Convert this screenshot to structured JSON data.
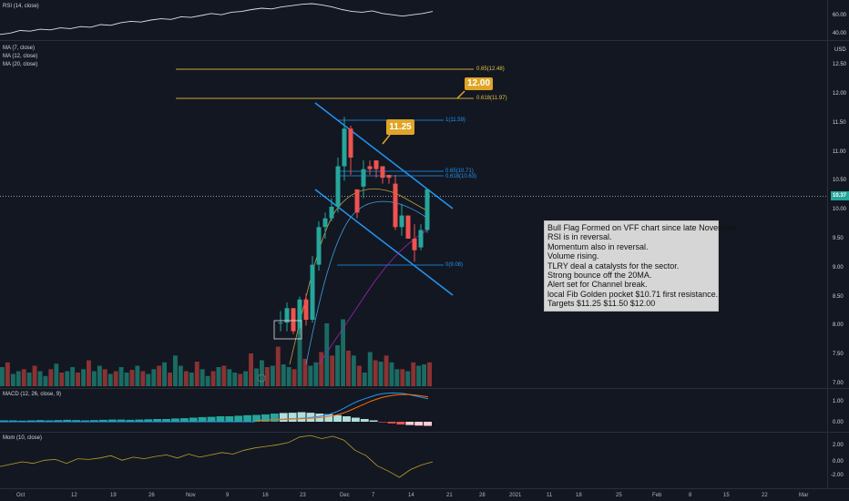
{
  "panes": {
    "rsi": {
      "label": "RSI (14, close)",
      "ticks": [
        "60.00",
        "40.00"
      ],
      "values": [
        28,
        30,
        34,
        33,
        36,
        35,
        38,
        37,
        40,
        39,
        43,
        42,
        46,
        48,
        47,
        50,
        52,
        51,
        55,
        54,
        57,
        60,
        58,
        62,
        63,
        66,
        68,
        67,
        70,
        72,
        74,
        75,
        73,
        70,
        66,
        63,
        62,
        64,
        60,
        58,
        56,
        58,
        60,
        63
      ]
    },
    "main": {
      "labels": [
        "MA (7, close)",
        "MA (12, close)",
        "MA (20, close)"
      ],
      "price_ticks": [
        "12.50",
        "12.00",
        "11.50",
        "11.00",
        "10.50",
        "10.00",
        "9.50",
        "9.00",
        "8.50",
        "8.00",
        "7.50",
        "7.00"
      ],
      "currency": "USD",
      "current_price": "10.37",
      "fib_labels": [
        "0.65(12.48)",
        "0.618(11.97)",
        "1(11.59)",
        "0.65(10.71)",
        "0.618(10.63)",
        "0(9.08)"
      ],
      "callouts": [
        "12.00",
        "11.25"
      ]
    },
    "macd": {
      "label": "MACD (12, 26, close, 9)",
      "ticks": [
        "1.00",
        "0.00"
      ]
    },
    "mom": {
      "label": "Mom (10, close)",
      "ticks": [
        "2.00",
        "0.00",
        "-2.00"
      ]
    }
  },
  "time_axis": [
    "Oct",
    "12",
    "19",
    "26",
    "Nov",
    "9",
    "16",
    "23",
    "Dec",
    "7",
    "14",
    "21",
    "28",
    "2021",
    "11",
    "18",
    "25",
    "Feb",
    "8",
    "15",
    "22",
    "Mar"
  ],
  "note_lines": [
    "Bull Flag Formed on VFF chart since late November.",
    "RSI is in reversal.",
    "Momentum also in reversal.",
    "Volume rising.",
    "TLRY deal a catalysts for the sector.",
    "Strong bounce off the 20MA.",
    "Alert set for Channel break.",
    "local Fib Golden pocket $10.71 first resistance.",
    "Targets $11.25 $11.50 $12.00"
  ],
  "chart_data": {
    "type": "candlestick",
    "symbol": "VFF",
    "ylim": [
      7.0,
      12.75
    ],
    "candles": [
      {
        "o": 8.05,
        "h": 8.25,
        "l": 7.9,
        "c": 8.05
      },
      {
        "o": 8.05,
        "h": 8.4,
        "l": 7.9,
        "c": 8.3
      },
      {
        "o": 8.3,
        "h": 8.3,
        "l": 7.85,
        "c": 7.9
      },
      {
        "o": 7.95,
        "h": 8.5,
        "l": 7.85,
        "c": 8.45
      },
      {
        "o": 8.45,
        "h": 8.55,
        "l": 8.0,
        "c": 8.1
      },
      {
        "o": 8.1,
        "h": 9.2,
        "l": 8.05,
        "c": 9.05
      },
      {
        "o": 9.05,
        "h": 9.8,
        "l": 8.95,
        "c": 9.7
      },
      {
        "o": 9.7,
        "h": 9.95,
        "l": 9.5,
        "c": 9.85
      },
      {
        "o": 9.85,
        "h": 10.2,
        "l": 9.8,
        "c": 10.05
      },
      {
        "o": 10.05,
        "h": 10.9,
        "l": 9.95,
        "c": 10.75
      },
      {
        "o": 10.75,
        "h": 11.6,
        "l": 10.5,
        "c": 11.4
      },
      {
        "o": 11.4,
        "h": 11.45,
        "l": 10.6,
        "c": 10.9
      },
      {
        "o": 10.35,
        "h": 10.35,
        "l": 9.85,
        "c": 9.95
      },
      {
        "o": 10.4,
        "h": 10.85,
        "l": 10.2,
        "c": 10.7
      },
      {
        "o": 10.75,
        "h": 10.85,
        "l": 10.6,
        "c": 10.7
      },
      {
        "o": 10.85,
        "h": 10.85,
        "l": 10.55,
        "c": 10.7
      },
      {
        "o": 10.75,
        "h": 10.75,
        "l": 10.45,
        "c": 10.55
      },
      {
        "o": 10.6,
        "h": 10.6,
        "l": 10.45,
        "c": 10.55
      },
      {
        "o": 10.45,
        "h": 10.6,
        "l": 9.65,
        "c": 9.7
      },
      {
        "o": 9.7,
        "h": 10.1,
        "l": 9.55,
        "c": 9.9
      },
      {
        "o": 9.9,
        "h": 9.9,
        "l": 9.5,
        "c": 9.5
      },
      {
        "o": 9.5,
        "h": 9.75,
        "l": 9.1,
        "c": 9.3
      },
      {
        "o": 9.35,
        "h": 9.75,
        "l": 9.3,
        "c": 9.65
      },
      {
        "o": 9.65,
        "h": 10.35,
        "l": 9.6,
        "c": 10.35
      }
    ],
    "volume": [
      0.28,
      0.35,
      0.18,
      0.22,
      0.25,
      0.2,
      0.3,
      0.22,
      0.15,
      0.25,
      0.33,
      0.2,
      0.22,
      0.28,
      0.2,
      0.25,
      0.38,
      0.22,
      0.3,
      0.25,
      0.18,
      0.22,
      0.28,
      0.2,
      0.24,
      0.3,
      0.22,
      0.18,
      0.25,
      0.3,
      0.35,
      0.2,
      0.45,
      0.3,
      0.22,
      0.2,
      0.36,
      0.25,
      0.15,
      0.22,
      0.28,
      0.3,
      0.25,
      0.2,
      0.18,
      0.22,
      0.48,
      0.26,
      0.38,
      0.28,
      0.3,
      0.58,
      0.32,
      0.28,
      0.25,
      0.9,
      0.4,
      0.3,
      0.35,
      0.5,
      0.92,
      0.45,
      0.6,
      0.98,
      0.52,
      0.45,
      0.3,
      0.2,
      0.5,
      0.38,
      0.36,
      0.45,
      0.35,
      0.25,
      0.25,
      0.22,
      0.35,
      0.3,
      0.32,
      0.35
    ],
    "fib_levels": [
      12.48,
      11.97,
      11.59,
      10.71,
      10.63,
      9.08
    ],
    "macd_hist": [
      0.05,
      0.05,
      0.04,
      0.05,
      0.06,
      0.05,
      0.06,
      0.07,
      0.06,
      0.05,
      0.06,
      0.07,
      0.08,
      0.08,
      0.07,
      0.08,
      0.09,
      0.1,
      0.1,
      0.12,
      0.13,
      0.15,
      0.17,
      0.18,
      0.2,
      0.2,
      0.22,
      0.24,
      0.25,
      0.27,
      0.3,
      0.32,
      0.33,
      0.35,
      0.33,
      0.3,
      0.28,
      0.24,
      0.2,
      0.15,
      0.1,
      0.05,
      -0.02,
      -0.06,
      -0.1,
      -0.12,
      -0.14,
      -0.15
    ],
    "macd_line": [
      0.05,
      0.07,
      0.08,
      0.08,
      0.1,
      0.1,
      0.12,
      0.12,
      0.14,
      0.15,
      0.18,
      0.2,
      0.25,
      0.3,
      0.38,
      0.48,
      0.6,
      0.72,
      0.82,
      0.9,
      0.98,
      1.05,
      1.1,
      1.12,
      1.13,
      1.12,
      1.1,
      1.05,
      1.0,
      0.95,
      0.9
    ],
    "signal_line": [
      0.04,
      0.05,
      0.06,
      0.07,
      0.08,
      0.09,
      0.1,
      0.11,
      0.12,
      0.13,
      0.14,
      0.16,
      0.18,
      0.22,
      0.26,
      0.32,
      0.4,
      0.5,
      0.6,
      0.7,
      0.8,
      0.88,
      0.95,
      1.0,
      1.04,
      1.06,
      1.07,
      1.06,
      1.04,
      1.01,
      0.98
    ],
    "mom_values": [
      -0.6,
      -0.3,
      0.0,
      -0.2,
      0.2,
      0.3,
      -0.2,
      0.4,
      0.3,
      0.5,
      0.8,
      0.2,
      0.6,
      0.4,
      0.7,
      0.9,
      0.5,
      1.0,
      0.6,
      0.9,
      1.2,
      1.0,
      1.5,
      1.8,
      2.0,
      2.2,
      2.5,
      3.2,
      3.4,
      3.0,
      3.3,
      2.8,
      1.5,
      0.8,
      -0.5,
      -1.2,
      -2.0,
      -1.0,
      -0.4,
      0.0
    ]
  }
}
